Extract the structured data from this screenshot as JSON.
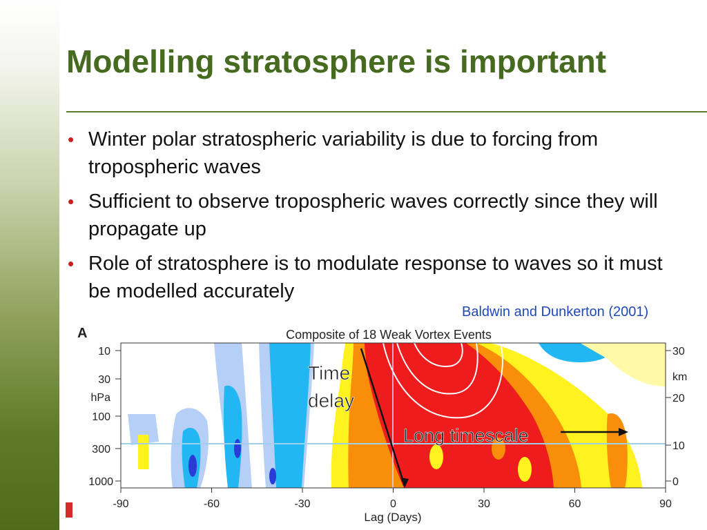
{
  "slide": {
    "title": "Modelling stratosphere is important",
    "bullets": [
      "Winter polar stratospheric variability is due to forcing from tropospheric waves",
      "Sufficient to observe tropospheric waves correctly since they will propagate up",
      "Role of stratosphere is to modulate response to waves so it must be modelled accurately"
    ],
    "citation": "Baldwin and Dunkerton (2001)"
  },
  "figure": {
    "panel_label": "A",
    "title": "Composite of 18 Weak Vortex Events",
    "xlabel": "Lag (Days)",
    "left_axis_unit": "hPa",
    "right_axis_unit": "km",
    "annotations": {
      "time_delay_line1": "Time",
      "time_delay_line2": "delay",
      "long_timescale": "Long timescale"
    },
    "colors": {
      "deep_red": "#ee1c1c",
      "orange": "#f98e0a",
      "yellow": "#fff21f",
      "pale_yellow": "#fff9a8",
      "light_blue": "#b6cff7",
      "cyan": "#22b7f2",
      "blue": "#2a3bd6",
      "title_green": "#466a1f",
      "bullet_red": "#cc1f1f",
      "citation_blue": "#1f49b8"
    }
  },
  "chart_data": {
    "type": "heatmap",
    "title": "Composite of 18 Weak Vortex Events",
    "xlabel": "Lag (Days)",
    "ylabel": "hPa",
    "y2label": "km",
    "xlim": [
      -90,
      90
    ],
    "x_ticks": [
      -90,
      -60,
      -30,
      0,
      30,
      60,
      90
    ],
    "y_ticks_hpa": [
      "10",
      "30",
      "100",
      "300",
      "1000"
    ],
    "y2_ticks_km": [
      "30",
      "20",
      "10",
      "0"
    ],
    "y_scale": "log-pressure"
  }
}
